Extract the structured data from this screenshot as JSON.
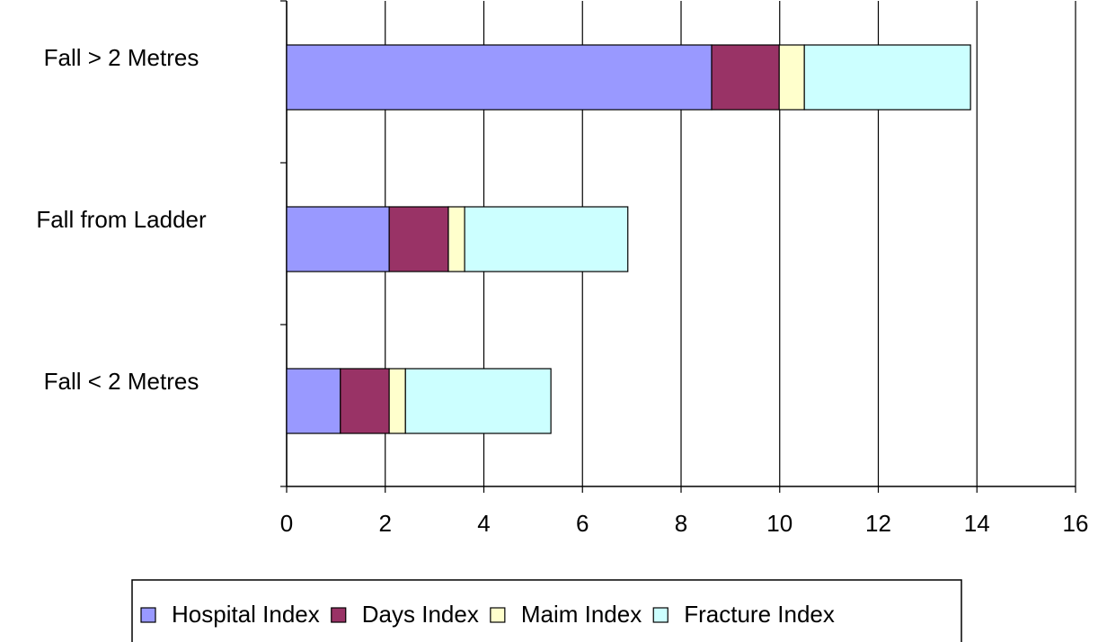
{
  "chart_data": {
    "type": "stacked-barh",
    "categories": [
      "Fall > 2 Metres",
      "Fall from Ladder",
      "Fall < 2 Metres"
    ],
    "series": [
      {
        "name": "Hospital Index",
        "color": "#9999ff",
        "values": [
          8.62,
          2.08,
          1.09
        ]
      },
      {
        "name": "Days Index",
        "color": "#993366",
        "values": [
          1.37,
          1.2,
          0.99
        ]
      },
      {
        "name": "Maim Index",
        "color": "#ffffcc",
        "values": [
          0.51,
          0.33,
          0.33
        ]
      },
      {
        "name": "Fracture Index",
        "color": "#ccffff",
        "values": [
          3.37,
          3.31,
          2.95
        ]
      }
    ],
    "xlim": [
      0,
      16
    ],
    "xticks": [
      0,
      2,
      4,
      6,
      8,
      10,
      12,
      14,
      16
    ],
    "grid": true
  }
}
